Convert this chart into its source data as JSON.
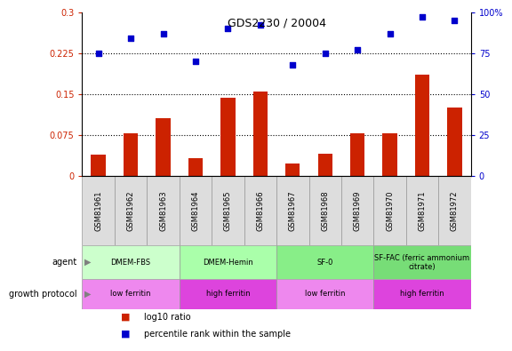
{
  "title": "GDS2230 / 20004",
  "samples": [
    "GSM81961",
    "GSM81962",
    "GSM81963",
    "GSM81964",
    "GSM81965",
    "GSM81966",
    "GSM81967",
    "GSM81968",
    "GSM81969",
    "GSM81970",
    "GSM81971",
    "GSM81972"
  ],
  "log10_ratio": [
    0.038,
    0.078,
    0.105,
    0.032,
    0.143,
    0.155,
    0.022,
    0.04,
    0.078,
    0.078,
    0.185,
    0.125
  ],
  "percentile": [
    75,
    84,
    87,
    70,
    90,
    92,
    68,
    75,
    77,
    87,
    97,
    95
  ],
  "bar_color": "#cc2200",
  "scatter_color": "#0000cc",
  "left_ylim": [
    0,
    0.3
  ],
  "right_ylim": [
    0,
    100
  ],
  "left_yticks": [
    0,
    0.075,
    0.15,
    0.225,
    0.3
  ],
  "left_yticklabels": [
    "0",
    "0.075",
    "0.15",
    "0.225",
    "0.3"
  ],
  "right_yticks": [
    0,
    25,
    50,
    75,
    100
  ],
  "right_yticklabels": [
    "0",
    "25",
    "50",
    "75",
    "100%"
  ],
  "hlines": [
    0.075,
    0.15,
    0.225
  ],
  "agent_groups": [
    {
      "label": "DMEM-FBS",
      "start": 0,
      "end": 3,
      "color": "#ccffcc"
    },
    {
      "label": "DMEM-Hemin",
      "start": 3,
      "end": 6,
      "color": "#aaffaa"
    },
    {
      "label": "SF-0",
      "start": 6,
      "end": 9,
      "color": "#88ee88"
    },
    {
      "label": "SF-FAC (ferric ammonium\ncitrate)",
      "start": 9,
      "end": 12,
      "color": "#77dd77"
    }
  ],
  "protocol_groups": [
    {
      "label": "low ferritin",
      "start": 0,
      "end": 3,
      "color": "#ee88ee"
    },
    {
      "label": "high ferritin",
      "start": 3,
      "end": 6,
      "color": "#dd44dd"
    },
    {
      "label": "low ferritin",
      "start": 6,
      "end": 9,
      "color": "#ee88ee"
    },
    {
      "label": "high ferritin",
      "start": 9,
      "end": 12,
      "color": "#dd44dd"
    }
  ],
  "legend_items": [
    {
      "label": "log10 ratio",
      "color": "#cc2200"
    },
    {
      "label": "percentile rank within the sample",
      "color": "#0000cc"
    }
  ],
  "sample_box_color": "#dddddd",
  "title_fontsize": 9,
  "tick_fontsize": 7,
  "label_fontsize": 7,
  "bar_fontsize": 6,
  "annot_fontsize": 7
}
